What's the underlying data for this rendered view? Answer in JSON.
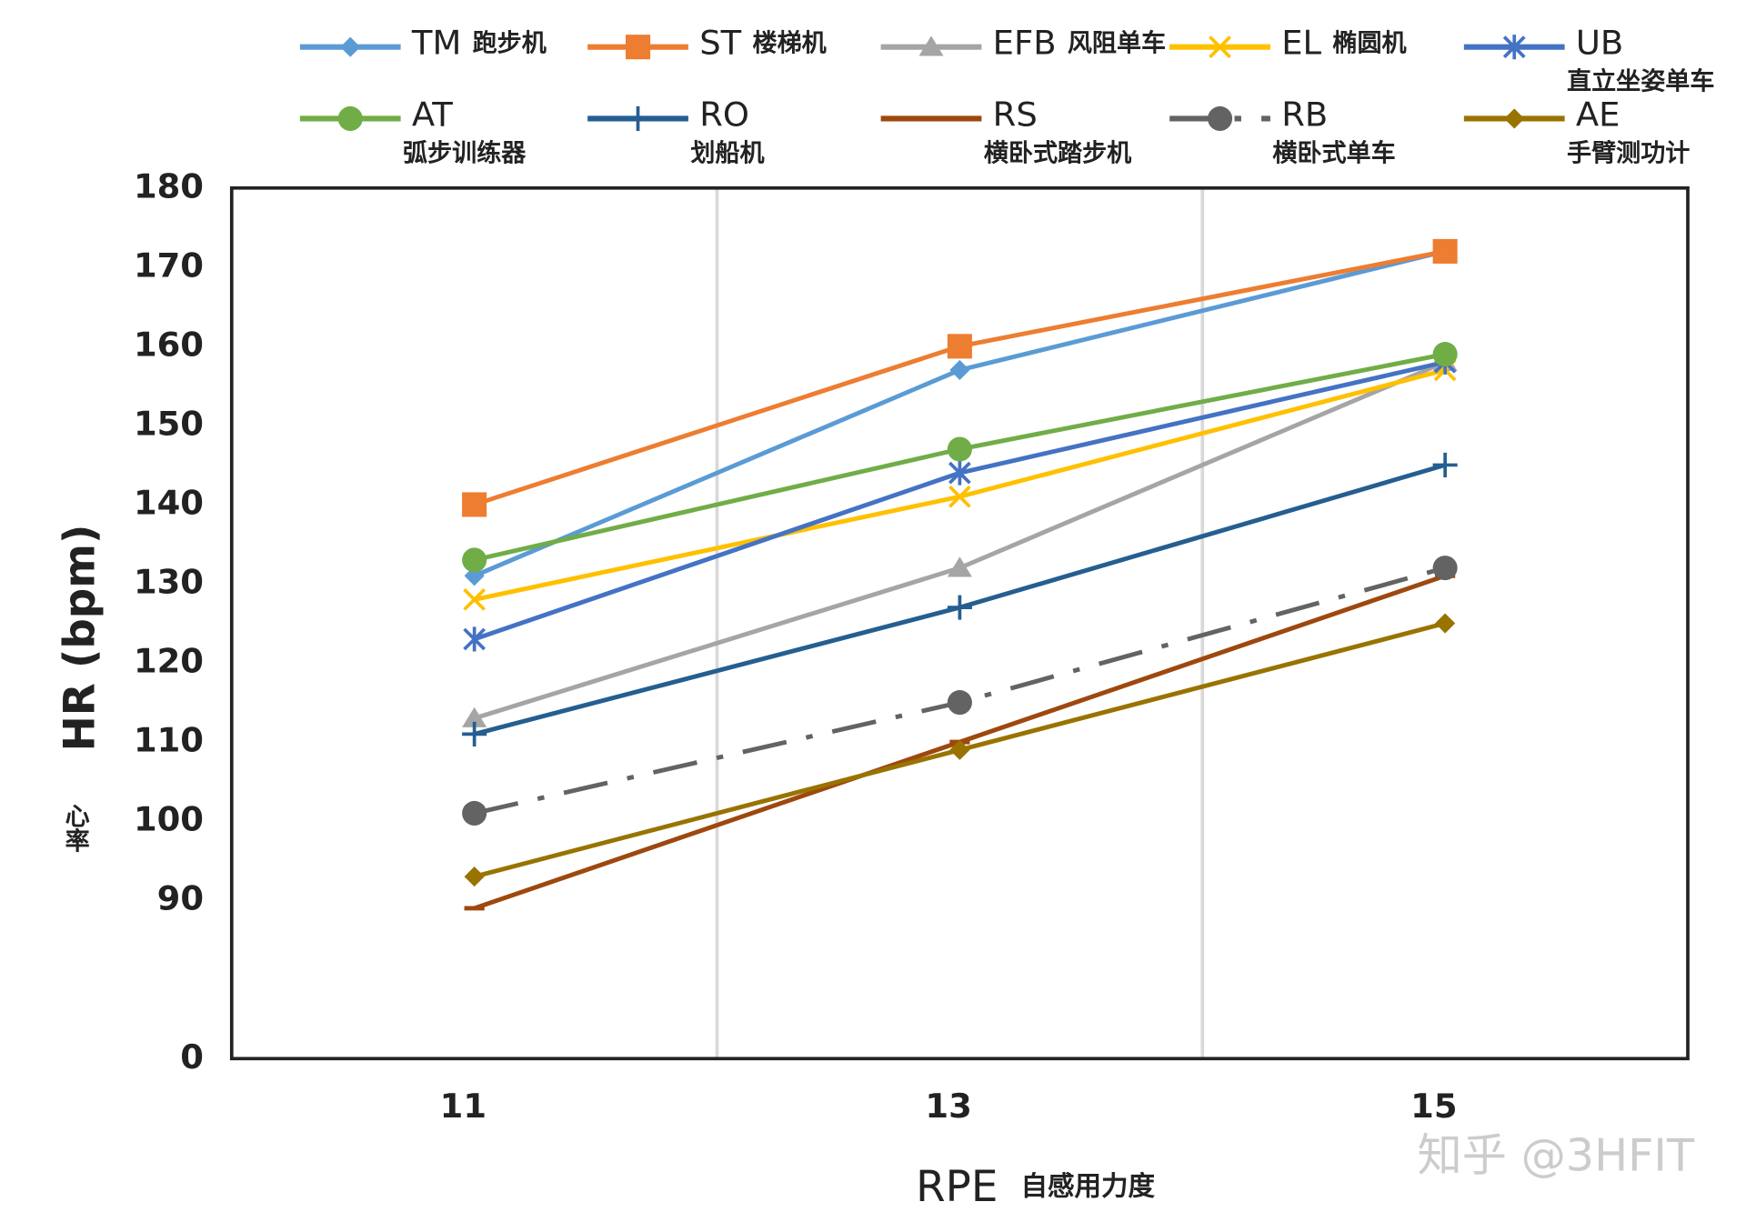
{
  "chart_data": {
    "type": "line",
    "y_label": "HR (bpm)",
    "y_label_sub": "心率",
    "x_label": "RPE",
    "x_label_sub": "自感用力度",
    "watermark": "知乎 @3HFIT",
    "categories": [
      "11",
      "13",
      "15"
    ],
    "ylim": [
      0,
      180
    ],
    "axis_break": [
      0,
      80
    ],
    "yticks": [
      0,
      90,
      100,
      110,
      120,
      130,
      140,
      150,
      160,
      170,
      180
    ],
    "grid": true,
    "series": [
      {
        "name": "TM",
        "name_sub": "跑步机",
        "color": "#5b9bd5",
        "marker": "diamond",
        "values": [
          131,
          157,
          172
        ]
      },
      {
        "name": "ST",
        "name_sub": "楼梯机",
        "color": "#ed7d31",
        "marker": "square",
        "values": [
          140,
          160,
          172
        ]
      },
      {
        "name": "EFB",
        "name_sub": "风阻单车",
        "color": "#a5a5a5",
        "marker": "triangle",
        "values": [
          113,
          132,
          158
        ]
      },
      {
        "name": "EL",
        "name_sub": "椭圆机",
        "color": "#ffc000",
        "marker": "x",
        "values": [
          128,
          141,
          157
        ]
      },
      {
        "name": "UB",
        "name_sub": "直立坐姿单车",
        "color": "#4472c4",
        "marker": "star",
        "values": [
          123,
          144,
          158
        ]
      },
      {
        "name": "AT",
        "name_sub": "弧步训练器",
        "color": "#70ad47",
        "marker": "circle",
        "values": [
          133,
          147,
          159
        ]
      },
      {
        "name": "RO",
        "name_sub": "划船机",
        "color": "#255e91",
        "marker": "plus",
        "values": [
          111,
          127,
          145
        ]
      },
      {
        "name": "RS",
        "name_sub": "横卧式踏步机",
        "color": "#9e480e",
        "marker": "dash",
        "values": [
          89,
          110,
          131
        ]
      },
      {
        "name": "RB",
        "name_sub": "横卧式单车",
        "color": "#636363",
        "marker": "circle",
        "dash": "dashdot",
        "values": [
          101,
          115,
          132
        ]
      },
      {
        "name": "AE",
        "name_sub": "手臂测功计",
        "color": "#997300",
        "marker": "diamond",
        "values": [
          93,
          109,
          125
        ]
      }
    ]
  }
}
